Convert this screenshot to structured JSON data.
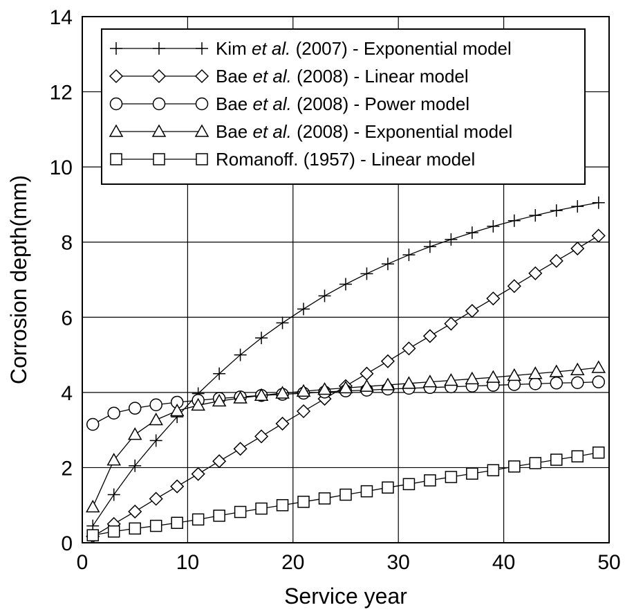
{
  "chart_data": {
    "type": "line",
    "xlabel": "Service year",
    "ylabel": "Corrosion depth(mm)",
    "xlim": [
      0,
      50
    ],
    "ylim": [
      0,
      14
    ],
    "x_ticks": [
      "0",
      "10",
      "20",
      "30",
      "40",
      "50"
    ],
    "y_ticks": [
      "0",
      "2",
      "4",
      "6",
      "8",
      "10",
      "12",
      "14"
    ],
    "grid": true,
    "legend_position": "top-right",
    "series": [
      {
        "name": "Kim et al. (2007) - Exponential model",
        "author": "Kim",
        "etal": "et al.",
        "rest": " (2007) - Exponential model",
        "marker": "plus",
        "x": [
          1,
          3,
          5,
          7,
          9,
          11,
          13,
          15,
          17,
          19,
          21,
          23,
          25,
          27,
          29,
          31,
          33,
          35,
          37,
          39,
          41,
          43,
          45,
          47,
          49
        ],
        "y": [
          0.45,
          1.28,
          2.05,
          2.72,
          3.35,
          3.97,
          4.5,
          5.0,
          5.45,
          5.85,
          6.22,
          6.57,
          6.88,
          7.16,
          7.42,
          7.66,
          7.88,
          8.07,
          8.25,
          8.42,
          8.57,
          8.71,
          8.84,
          8.95,
          9.05
        ]
      },
      {
        "name": "Bae et al. (2008) - Linear model",
        "author": "Bae",
        "etal": "et al.",
        "rest": " (2008) - Linear model",
        "marker": "diamond",
        "x": [
          1,
          3,
          5,
          7,
          9,
          11,
          13,
          15,
          17,
          19,
          21,
          23,
          25,
          27,
          29,
          31,
          33,
          35,
          37,
          39,
          41,
          43,
          45,
          47,
          49
        ],
        "y": [
          0.17,
          0.5,
          0.83,
          1.17,
          1.5,
          1.83,
          2.17,
          2.5,
          2.83,
          3.17,
          3.5,
          3.83,
          4.17,
          4.5,
          4.83,
          5.17,
          5.5,
          5.83,
          6.17,
          6.5,
          6.83,
          7.17,
          7.5,
          7.83,
          8.17
        ]
      },
      {
        "name": "Bae et al. (2008) - Power model",
        "author": "Bae",
        "etal": "et al.",
        "rest": " (2008) - Power model",
        "marker": "circle",
        "x": [
          1,
          3,
          5,
          7,
          9,
          11,
          13,
          15,
          17,
          19,
          21,
          23,
          25,
          27,
          29,
          31,
          33,
          35,
          37,
          39,
          41,
          43,
          45,
          47,
          49
        ],
        "y": [
          3.15,
          3.45,
          3.58,
          3.67,
          3.74,
          3.79,
          3.84,
          3.88,
          3.92,
          3.95,
          3.98,
          4.01,
          4.04,
          4.06,
          4.09,
          4.11,
          4.13,
          4.15,
          4.17,
          4.19,
          4.21,
          4.23,
          4.25,
          4.26,
          4.28
        ]
      },
      {
        "name": "Bae et al. (2008) - Exponential model",
        "author": "Bae",
        "etal": "et al.",
        "rest": " (2008) - Exponential model",
        "marker": "triangle",
        "x": [
          1,
          3,
          5,
          7,
          9,
          11,
          13,
          15,
          17,
          19,
          21,
          23,
          25,
          27,
          29,
          31,
          33,
          35,
          37,
          39,
          41,
          43,
          45,
          47,
          49
        ],
        "y": [
          0.95,
          2.2,
          2.88,
          3.27,
          3.51,
          3.66,
          3.77,
          3.85,
          3.92,
          3.98,
          4.03,
          4.08,
          4.12,
          4.16,
          4.2,
          4.24,
          4.28,
          4.32,
          4.36,
          4.4,
          4.45,
          4.5,
          4.55,
          4.6,
          4.66
        ]
      },
      {
        "name": "Romanoff. (1957) - Linear model",
        "author": "",
        "etal": "",
        "rest": "Romanoff. (1957) - Linear model",
        "marker": "square",
        "x": [
          1,
          3,
          5,
          7,
          9,
          11,
          13,
          15,
          17,
          19,
          21,
          23,
          25,
          27,
          29,
          31,
          33,
          35,
          37,
          39,
          41,
          43,
          45,
          47,
          49
        ],
        "y": [
          0.2,
          0.3,
          0.38,
          0.45,
          0.53,
          0.62,
          0.72,
          0.82,
          0.91,
          1.0,
          1.09,
          1.18,
          1.28,
          1.37,
          1.47,
          1.56,
          1.66,
          1.75,
          1.84,
          1.93,
          2.03,
          2.12,
          2.21,
          2.3,
          2.4
        ]
      }
    ]
  }
}
